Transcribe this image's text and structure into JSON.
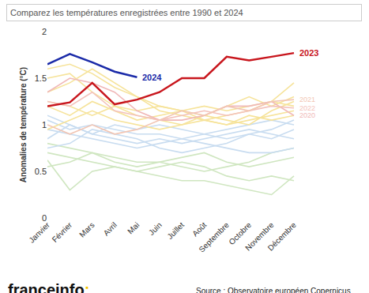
{
  "chart_data": {
    "type": "line",
    "title": "Comparez les températures enregistrées entre 1990 et 2024",
    "y_label": "Anomalies de température (°C)",
    "categories": [
      "Janvier",
      "Février",
      "Mars",
      "Avril",
      "Mai",
      "Juin",
      "Juillet",
      "Août",
      "Septembre",
      "Octobre",
      "Novembre",
      "Décembre"
    ],
    "ylim": [
      0,
      2
    ],
    "yticks": [
      0,
      0.5,
      1,
      1.5,
      2
    ],
    "grid": false,
    "annotations": [
      "franceinfo:",
      "Source : Observatoire européen Copernicus"
    ],
    "series": [
      {
        "color": "#cfe6c0",
        "values": [
          0.62,
          0.3,
          0.5,
          0.55,
          0.5,
          0.45,
          0.4,
          0.4,
          0.35,
          0.3,
          0.25,
          0.45
        ]
      },
      {
        "color": "#cfe6c0",
        "values": [
          0.7,
          0.65,
          0.6,
          0.55,
          0.5,
          0.55,
          0.6,
          0.55,
          0.45,
          0.4,
          0.45,
          0.4
        ]
      },
      {
        "color": "#cfe6c0",
        "values": [
          0.55,
          0.6,
          0.7,
          0.6,
          0.55,
          0.6,
          0.65,
          0.7,
          0.6,
          0.55,
          0.6,
          0.65
        ]
      },
      {
        "color": "#cfe6c0",
        "values": [
          0.8,
          0.75,
          0.7,
          0.65,
          0.6,
          0.6,
          0.55,
          0.5,
          0.55,
          0.6,
          0.7,
          0.75
        ]
      },
      {
        "color": "#c8dcf0",
        "values": [
          0.95,
          0.9,
          0.85,
          0.8,
          0.75,
          0.8,
          0.85,
          0.8,
          0.75,
          0.7,
          0.7,
          0.75
        ]
      },
      {
        "color": "#c8dcf0",
        "values": [
          0.85,
          1.0,
          0.9,
          0.85,
          0.8,
          0.85,
          0.8,
          0.85,
          0.9,
          0.95,
          0.9,
          0.85
        ]
      },
      {
        "color": "#c8dcf0",
        "values": [
          1.05,
          0.95,
          1.0,
          0.95,
          0.9,
          0.9,
          0.85,
          0.9,
          0.95,
          1.0,
          1.05,
          1.0
        ]
      },
      {
        "color": "#c8dcf0",
        "values": [
          0.75,
          0.8,
          0.95,
          0.9,
          0.85,
          0.75,
          0.7,
          0.75,
          0.8,
          0.9,
          0.95,
          1.05
        ]
      },
      {
        "color": "#c8dcf0",
        "values": [
          1.1,
          1.0,
          0.9,
          1.0,
          0.95,
          1.0,
          0.95,
          0.9,
          0.85,
          0.9,
          0.85,
          0.95
        ]
      },
      {
        "color": "#f6e39a",
        "values": [
          1.5,
          1.55,
          1.35,
          1.2,
          1.1,
          1.05,
          1.0,
          1.05,
          1.0,
          1.05,
          1.1,
          1.15
        ]
      },
      {
        "color": "#f6e39a",
        "values": [
          1.35,
          1.45,
          1.6,
          1.45,
          1.3,
          1.2,
          1.15,
          1.2,
          1.15,
          1.2,
          1.25,
          1.45
        ]
      },
      {
        "color": "#f6e39a",
        "values": [
          1.6,
          1.65,
          1.55,
          1.4,
          1.3,
          1.15,
          1.1,
          1.05,
          1.1,
          1.15,
          1.25,
          1.2
        ]
      },
      {
        "color": "#f6e39a",
        "values": [
          1.2,
          1.1,
          1.25,
          1.15,
          1.05,
          1.1,
          1.15,
          1.05,
          1.0,
          1.1,
          1.05,
          1.1
        ]
      },
      {
        "color": "#f6e39a",
        "values": [
          0.95,
          1.05,
          1.15,
          1.05,
          1.0,
          0.95,
          1.0,
          1.1,
          1.05,
          1.0,
          1.15,
          1.25
        ]
      },
      {
        "color": "#f6e39a",
        "values": [
          1.25,
          1.2,
          1.1,
          1.2,
          1.15,
          1.2,
          1.15,
          1.1,
          1.2,
          1.3,
          1.2,
          1.3
        ]
      },
      {
        "name": "2020",
        "color": "#f0b8b8",
        "values": [
          1.35,
          1.5,
          1.45,
          1.35,
          1.15,
          1.05,
          1.05,
          1.1,
          1.2,
          1.2,
          1.25,
          1.1
        ]
      },
      {
        "name": "2022",
        "color": "#f3c2bb",
        "values": [
          1.25,
          1.2,
          1.35,
          1.15,
          1.1,
          1.05,
          1.1,
          1.15,
          1.1,
          1.15,
          1.2,
          1.18
        ]
      },
      {
        "name": "2021",
        "color": "#f2c6b4",
        "values": [
          1.0,
          0.9,
          1.0,
          0.9,
          0.95,
          1.05,
          1.15,
          1.1,
          1.2,
          1.15,
          1.25,
          1.27
        ]
      },
      {
        "name": "2023",
        "color": "#c8161d",
        "values": [
          1.2,
          1.24,
          1.45,
          1.22,
          1.27,
          1.35,
          1.5,
          1.5,
          1.73,
          1.69,
          1.73,
          1.77
        ]
      },
      {
        "name": "2024",
        "color": "#1a2aa8",
        "values": [
          1.65,
          1.76,
          1.67,
          1.57,
          1.51,
          null,
          null,
          null,
          null,
          null,
          null,
          null
        ]
      }
    ]
  }
}
